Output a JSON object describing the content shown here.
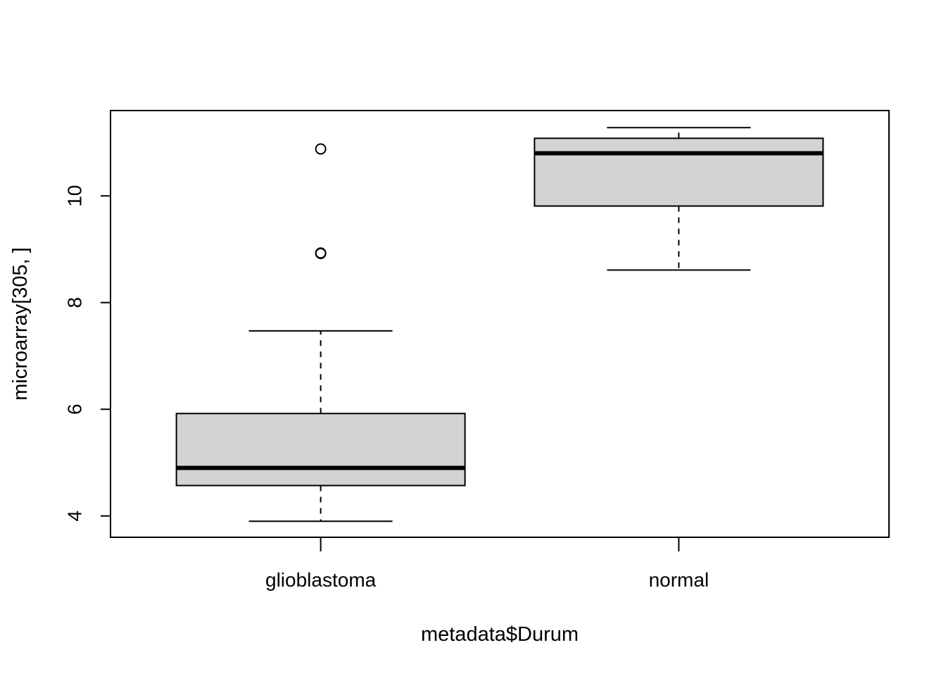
{
  "chart_data": {
    "type": "boxplot",
    "title": "",
    "xlabel": "metadata$Durum",
    "ylabel": "microarray[305, ]",
    "ylim": [
      3.6,
      11.6
    ],
    "yticks": [
      4,
      6,
      8,
      10
    ],
    "ytick_labels": [
      "4",
      "6",
      "8",
      "10"
    ],
    "grid": false,
    "legend": "none",
    "box_fill": "#d3d3d3",
    "categories": [
      "glioblastoma",
      "normal"
    ],
    "boxes": [
      {
        "category": "glioblastoma",
        "whisker_low": 3.9,
        "q1": 4.57,
        "median": 4.9,
        "q3": 5.92,
        "whisker_high": 7.47,
        "outliers": [
          8.92,
          8.93,
          10.88
        ]
      },
      {
        "category": "normal",
        "whisker_low": 8.61,
        "q1": 9.81,
        "median": 10.8,
        "q3": 11.08,
        "whisker_high": 11.28,
        "outliers": []
      }
    ]
  }
}
